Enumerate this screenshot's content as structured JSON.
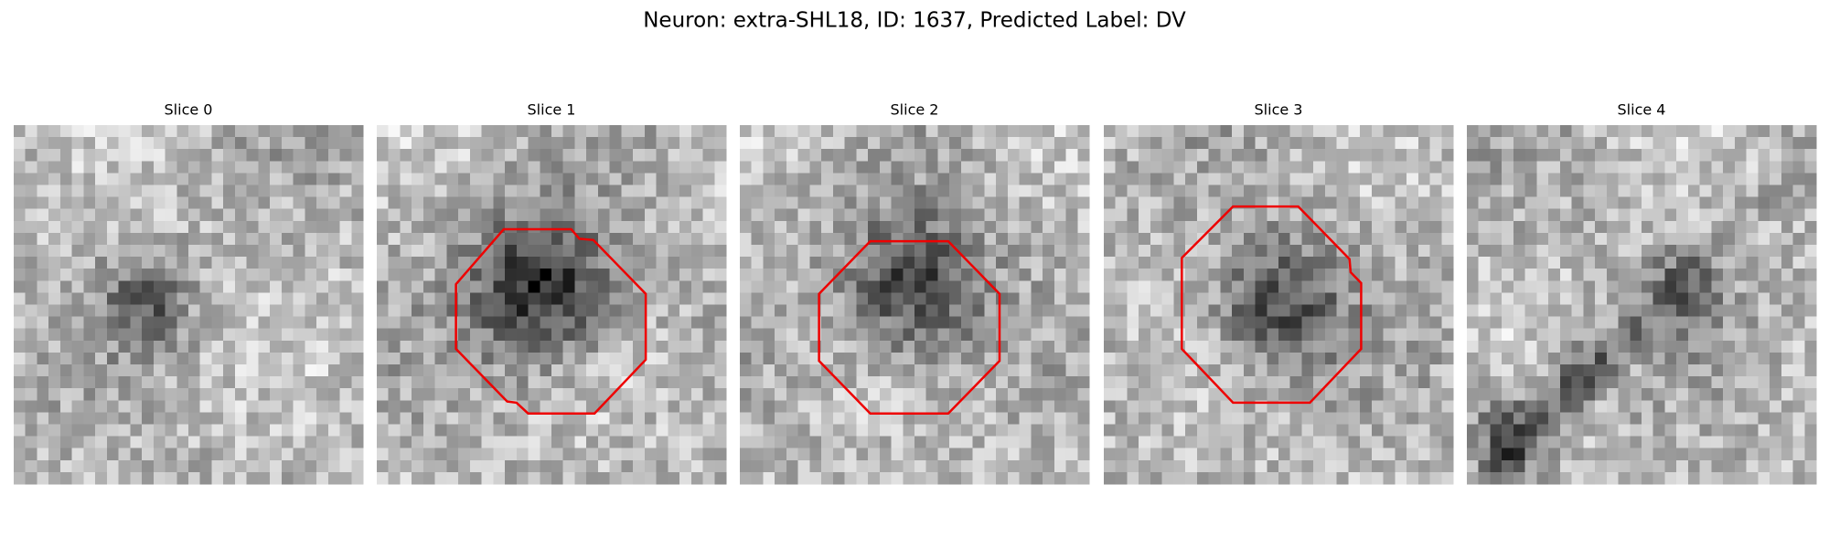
{
  "header": {
    "title": "Neuron: extra-SHL18, ID: 1637, Predicted Label: DV"
  },
  "panels": [
    {
      "title": "Slice 0"
    },
    {
      "title": "Slice 1"
    },
    {
      "title": "Slice 2"
    },
    {
      "title": "Slice 3"
    },
    {
      "title": "Slice 4"
    }
  ]
}
